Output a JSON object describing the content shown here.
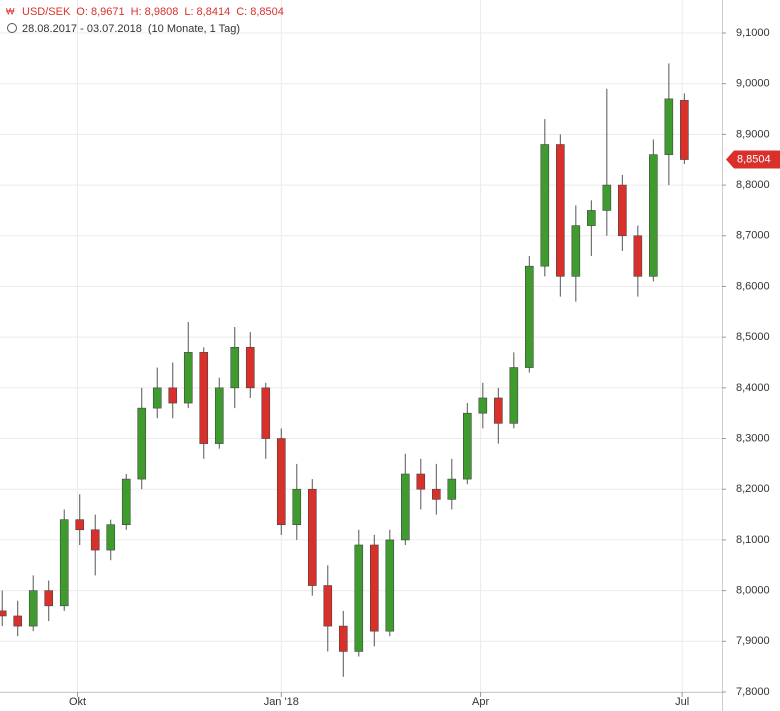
{
  "chart_data": {
    "type": "candlestick",
    "header": {
      "symbol": "USD/SEK",
      "open": "O: 8,9671",
      "high": "H: 8,9808",
      "low": "L: 8,8414",
      "close": "C: 8,8504",
      "range": "28.08.2017 - 03.07.2018",
      "period": "(10 Monate, 1 Tag)"
    },
    "x": [
      "2017-08-28",
      "2017-09-04",
      "2017-09-11",
      "2017-09-18",
      "2017-09-25",
      "2017-10-02",
      "2017-10-09",
      "2017-10-16",
      "2017-10-23",
      "2017-10-30",
      "2017-11-06",
      "2017-11-13",
      "2017-11-20",
      "2017-11-27",
      "2017-12-04",
      "2017-12-11",
      "2017-12-18",
      "2017-12-25",
      "2018-01-01",
      "2018-01-08",
      "2018-01-15",
      "2018-01-22",
      "2018-01-29",
      "2018-02-05",
      "2018-02-12",
      "2018-02-19",
      "2018-02-26",
      "2018-03-05",
      "2018-03-12",
      "2018-03-19",
      "2018-03-26",
      "2018-04-02",
      "2018-04-09",
      "2018-04-16",
      "2018-04-23",
      "2018-04-30",
      "2018-05-07",
      "2018-05-14",
      "2018-05-21",
      "2018-05-28",
      "2018-06-04",
      "2018-06-11",
      "2018-06-18",
      "2018-06-25",
      "2018-07-02"
    ],
    "open": [
      7.96,
      7.95,
      7.93,
      8.0,
      7.97,
      8.14,
      8.12,
      8.08,
      8.13,
      8.22,
      8.36,
      8.4,
      8.37,
      8.47,
      8.29,
      8.4,
      8.48,
      8.4,
      8.3,
      8.13,
      8.2,
      8.01,
      7.93,
      7.88,
      8.09,
      7.92,
      8.1,
      8.23,
      8.2,
      8.18,
      8.22,
      8.35,
      8.38,
      8.33,
      8.44,
      8.64,
      8.88,
      8.62,
      8.72,
      8.75,
      8.8,
      8.7,
      8.62,
      8.86,
      8.9671
    ],
    "high": [
      8.0,
      7.98,
      8.03,
      8.02,
      8.16,
      8.19,
      8.15,
      8.14,
      8.23,
      8.4,
      8.44,
      8.45,
      8.53,
      8.48,
      8.42,
      8.52,
      8.51,
      8.41,
      8.32,
      8.25,
      8.22,
      8.05,
      7.96,
      8.12,
      8.11,
      8.12,
      8.27,
      8.26,
      8.25,
      8.26,
      8.37,
      8.41,
      8.4,
      8.47,
      8.66,
      8.93,
      8.9,
      8.76,
      8.77,
      8.99,
      8.82,
      8.72,
      8.89,
      9.04,
      8.9808
    ],
    "low": [
      7.93,
      7.91,
      7.92,
      7.94,
      7.96,
      8.09,
      8.03,
      8.06,
      8.12,
      8.2,
      8.34,
      8.34,
      8.36,
      8.26,
      8.28,
      8.36,
      8.38,
      8.26,
      8.11,
      8.1,
      7.99,
      7.88,
      7.83,
      7.87,
      7.89,
      7.91,
      8.09,
      8.16,
      8.15,
      8.16,
      8.21,
      8.32,
      8.29,
      8.32,
      8.43,
      8.62,
      8.58,
      8.57,
      8.66,
      8.7,
      8.67,
      8.58,
      8.61,
      8.8,
      8.8414
    ],
    "close": [
      7.95,
      7.93,
      8.0,
      7.97,
      8.14,
      8.12,
      8.08,
      8.13,
      8.22,
      8.36,
      8.4,
      8.37,
      8.47,
      8.29,
      8.4,
      8.48,
      8.4,
      8.3,
      8.13,
      8.2,
      8.01,
      7.93,
      7.88,
      8.09,
      7.92,
      8.1,
      8.23,
      8.2,
      8.18,
      8.22,
      8.35,
      8.38,
      8.33,
      8.44,
      8.64,
      8.88,
      8.62,
      8.72,
      8.75,
      8.8,
      8.7,
      8.62,
      8.86,
      8.97,
      8.8504
    ],
    "up_color": "#3f9b2e",
    "down_color": "#d9302c",
    "xlim": [
      "2017-08-27",
      "2018-07-19"
    ],
    "xticks": [
      {
        "value": "2017-10-01",
        "label": "Okt"
      },
      {
        "value": "2018-01-01",
        "label": "Jan '18"
      },
      {
        "value": "2018-04-01",
        "label": "Apr"
      },
      {
        "value": "2018-07-01",
        "label": "Jul"
      }
    ],
    "ylim": [
      7.8,
      9.1
    ],
    "yticks": [
      {
        "value": 7.8,
        "label": "7,8000"
      },
      {
        "value": 7.9,
        "label": "7,9000"
      },
      {
        "value": 8.0,
        "label": "8,0000"
      },
      {
        "value": 8.1,
        "label": "8,1000"
      },
      {
        "value": 8.2,
        "label": "8,2000"
      },
      {
        "value": 8.3,
        "label": "8,3000"
      },
      {
        "value": 8.4,
        "label": "8,4000"
      },
      {
        "value": 8.5,
        "label": "8,5000"
      },
      {
        "value": 8.6,
        "label": "8,6000"
      },
      {
        "value": 8.7,
        "label": "8,7000"
      },
      {
        "value": 8.8,
        "label": "8,8000"
      },
      {
        "value": 8.9,
        "label": "8,9000"
      },
      {
        "value": 9.0,
        "label": "9,0000"
      },
      {
        "value": 9.1,
        "label": "9,1000"
      }
    ],
    "last": {
      "value": 8.8504,
      "label": "8,8504"
    },
    "grid": true
  }
}
